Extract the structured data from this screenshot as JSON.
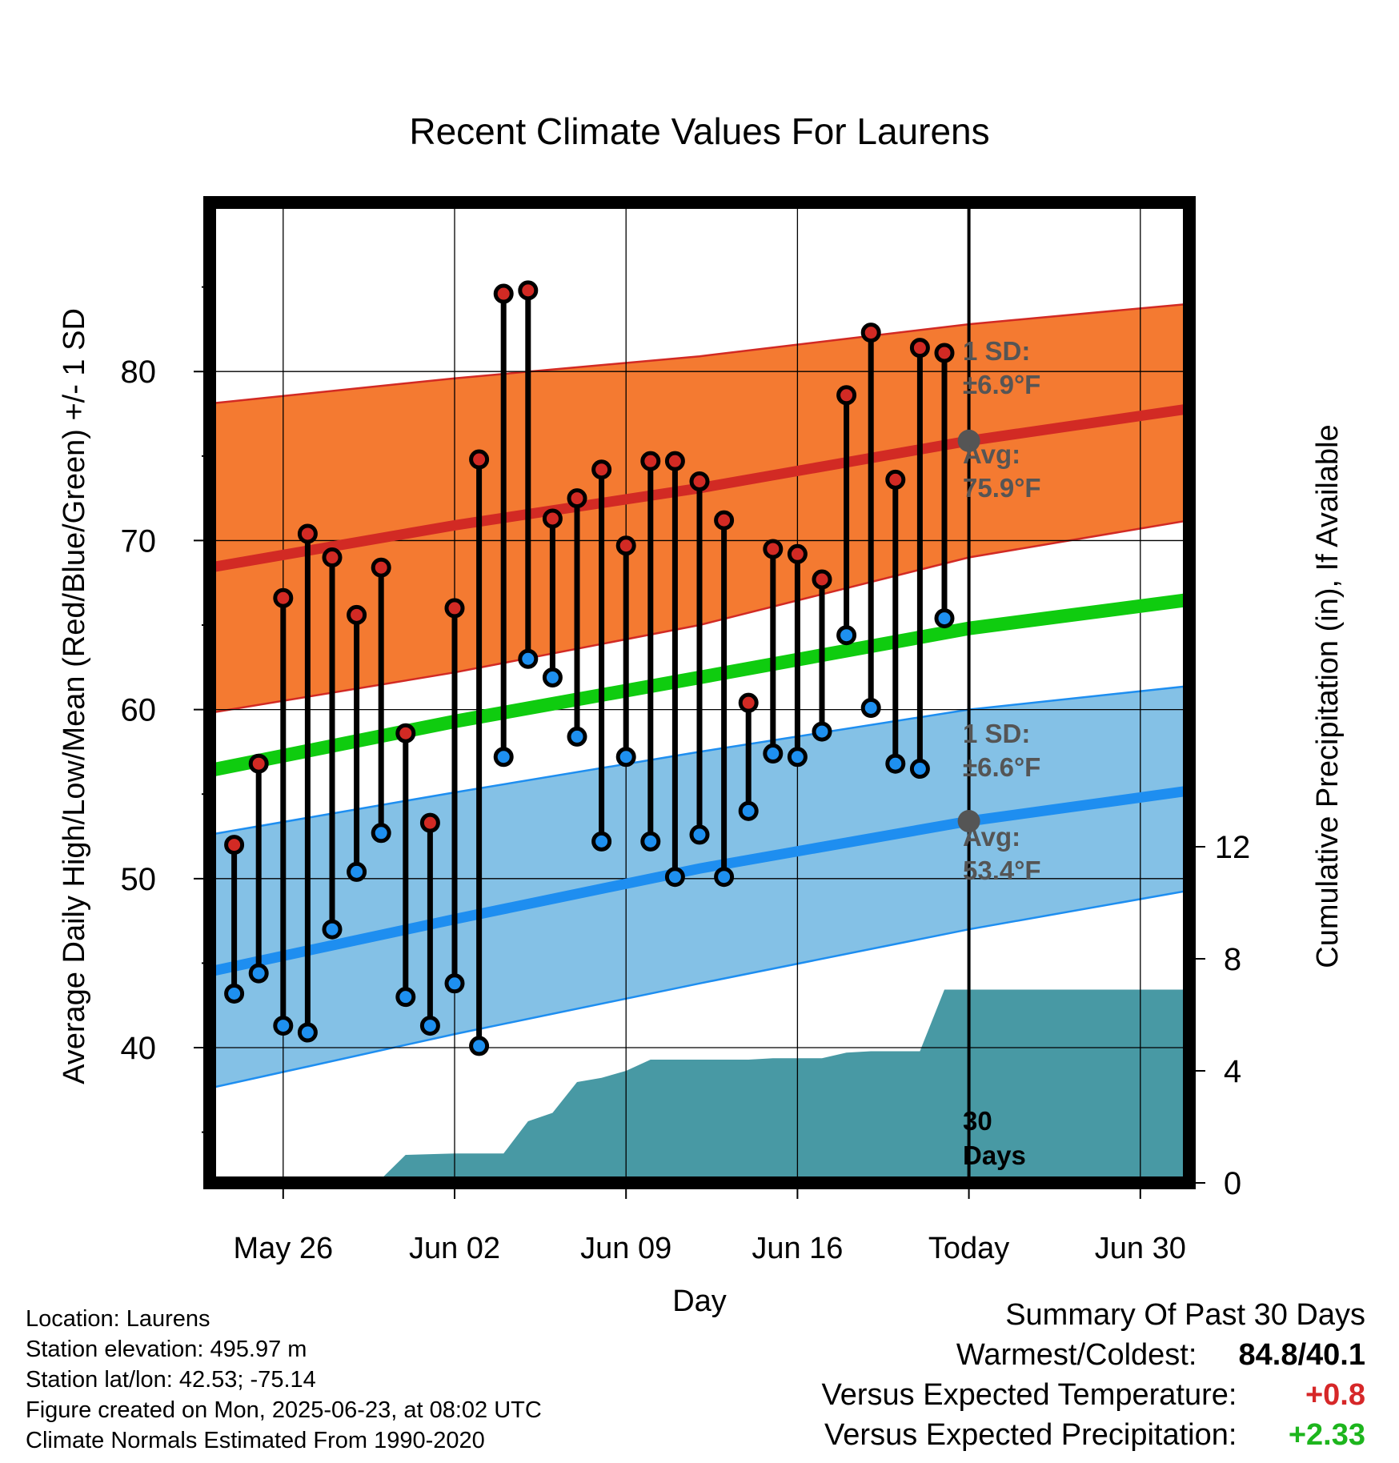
{
  "title": "Recent Climate Values For Laurens",
  "chart_data": {
    "type": "line",
    "title": "Recent Climate Values For Laurens",
    "xlabel": "Day",
    "ylabel_left": "Average Daily High/Low/Mean (Red/Blue/Green) +/- 1 SD",
    "ylabel_right": "Cumulative Precipitation (in), If Available",
    "x_range": [
      "2025-05-23",
      "2025-07-02"
    ],
    "ylim_left": [
      32,
      90
    ],
    "ylim_right": [
      0,
      35
    ],
    "x_ticks": [
      {
        "date": "2025-05-26",
        "label": "May 26"
      },
      {
        "date": "2025-06-02",
        "label": "Jun 02"
      },
      {
        "date": "2025-06-09",
        "label": "Jun 09"
      },
      {
        "date": "2025-06-16",
        "label": "Jun 16"
      },
      {
        "date": "2025-06-23",
        "label": "Today"
      },
      {
        "date": "2025-06-30",
        "label": "Jun 30"
      }
    ],
    "y_ticks_left": [
      40,
      50,
      60,
      70,
      80
    ],
    "y_ticks_right": [
      0,
      4,
      8,
      12
    ],
    "grid": true,
    "today": "2025-06-23",
    "daily_highs": [
      {
        "date": "2025-05-24",
        "value": 52.0
      },
      {
        "date": "2025-05-25",
        "value": 56.8
      },
      {
        "date": "2025-05-26",
        "value": 66.6
      },
      {
        "date": "2025-05-27",
        "value": 70.4
      },
      {
        "date": "2025-05-28",
        "value": 69.0
      },
      {
        "date": "2025-05-29",
        "value": 65.6
      },
      {
        "date": "2025-05-30",
        "value": 68.4
      },
      {
        "date": "2025-05-31",
        "value": 58.6
      },
      {
        "date": "2025-06-01",
        "value": 53.3
      },
      {
        "date": "2025-06-02",
        "value": 66.0
      },
      {
        "date": "2025-06-03",
        "value": 74.8
      },
      {
        "date": "2025-06-04",
        "value": 84.6
      },
      {
        "date": "2025-06-05",
        "value": 84.8
      },
      {
        "date": "2025-06-06",
        "value": 71.3
      },
      {
        "date": "2025-06-07",
        "value": 72.5
      },
      {
        "date": "2025-06-08",
        "value": 74.2
      },
      {
        "date": "2025-06-09",
        "value": 69.7
      },
      {
        "date": "2025-06-10",
        "value": 74.7
      },
      {
        "date": "2025-06-11",
        "value": 74.7
      },
      {
        "date": "2025-06-12",
        "value": 73.5
      },
      {
        "date": "2025-06-13",
        "value": 71.2
      },
      {
        "date": "2025-06-14",
        "value": 60.4
      },
      {
        "date": "2025-06-15",
        "value": 69.5
      },
      {
        "date": "2025-06-16",
        "value": 69.2
      },
      {
        "date": "2025-06-17",
        "value": 67.7
      },
      {
        "date": "2025-06-18",
        "value": 78.6
      },
      {
        "date": "2025-06-19",
        "value": 82.3
      },
      {
        "date": "2025-06-20",
        "value": 73.6
      },
      {
        "date": "2025-06-21",
        "value": 81.4
      },
      {
        "date": "2025-06-22",
        "value": 81.1
      }
    ],
    "daily_lows": [
      {
        "date": "2025-05-24",
        "value": 43.2
      },
      {
        "date": "2025-05-25",
        "value": 44.4
      },
      {
        "date": "2025-05-26",
        "value": 41.3
      },
      {
        "date": "2025-05-27",
        "value": 40.9
      },
      {
        "date": "2025-05-28",
        "value": 47.0
      },
      {
        "date": "2025-05-29",
        "value": 50.4
      },
      {
        "date": "2025-05-30",
        "value": 52.7
      },
      {
        "date": "2025-05-31",
        "value": 43.0
      },
      {
        "date": "2025-06-01",
        "value": 41.3
      },
      {
        "date": "2025-06-02",
        "value": 43.8
      },
      {
        "date": "2025-06-03",
        "value": 40.1
      },
      {
        "date": "2025-06-04",
        "value": 57.2
      },
      {
        "date": "2025-06-05",
        "value": 63.0
      },
      {
        "date": "2025-06-06",
        "value": 61.9
      },
      {
        "date": "2025-06-07",
        "value": 58.4
      },
      {
        "date": "2025-06-08",
        "value": 52.2
      },
      {
        "date": "2025-06-09",
        "value": 57.2
      },
      {
        "date": "2025-06-10",
        "value": 52.2
      },
      {
        "date": "2025-06-11",
        "value": 50.1
      },
      {
        "date": "2025-06-12",
        "value": 52.6
      },
      {
        "date": "2025-06-13",
        "value": 50.1
      },
      {
        "date": "2025-06-14",
        "value": 54.0
      },
      {
        "date": "2025-06-15",
        "value": 57.4
      },
      {
        "date": "2025-06-16",
        "value": 57.2
      },
      {
        "date": "2025-06-17",
        "value": 58.7
      },
      {
        "date": "2025-06-18",
        "value": 64.4
      },
      {
        "date": "2025-06-19",
        "value": 60.1
      },
      {
        "date": "2025-06-20",
        "value": 56.8
      },
      {
        "date": "2025-06-21",
        "value": 56.5
      },
      {
        "date": "2025-06-22",
        "value": 65.4
      }
    ],
    "normal_high": {
      "mean": [
        {
          "date": "2025-05-23",
          "value": 68.4
        },
        {
          "date": "2025-06-02",
          "value": 70.9
        },
        {
          "date": "2025-06-12",
          "value": 73.1
        },
        {
          "date": "2025-06-23",
          "value": 75.9
        },
        {
          "date": "2025-07-02",
          "value": 77.8
        }
      ],
      "upper": [
        {
          "date": "2025-05-23",
          "value": 78.1
        },
        {
          "date": "2025-06-02",
          "value": 79.6
        },
        {
          "date": "2025-06-12",
          "value": 80.9
        },
        {
          "date": "2025-06-23",
          "value": 82.8
        },
        {
          "date": "2025-07-02",
          "value": 84.0
        }
      ],
      "lower": [
        {
          "date": "2025-05-23",
          "value": 59.8
        },
        {
          "date": "2025-06-02",
          "value": 62.2
        },
        {
          "date": "2025-06-12",
          "value": 65.0
        },
        {
          "date": "2025-06-23",
          "value": 69.0
        },
        {
          "date": "2025-07-02",
          "value": 71.2
        }
      ]
    },
    "normal_low": {
      "mean": [
        {
          "date": "2025-05-23",
          "value": 44.5
        },
        {
          "date": "2025-06-02",
          "value": 47.6
        },
        {
          "date": "2025-06-12",
          "value": 50.6
        },
        {
          "date": "2025-06-23",
          "value": 53.4
        },
        {
          "date": "2025-07-02",
          "value": 55.2
        }
      ],
      "upper": [
        {
          "date": "2025-05-23",
          "value": 52.6
        },
        {
          "date": "2025-06-02",
          "value": 55.1
        },
        {
          "date": "2025-06-12",
          "value": 57.5
        },
        {
          "date": "2025-06-23",
          "value": 60.0
        },
        {
          "date": "2025-07-02",
          "value": 61.4
        }
      ],
      "lower": [
        {
          "date": "2025-05-23",
          "value": 37.6
        },
        {
          "date": "2025-06-02",
          "value": 40.8
        },
        {
          "date": "2025-06-12",
          "value": 43.8
        },
        {
          "date": "2025-06-23",
          "value": 47.0
        },
        {
          "date": "2025-07-02",
          "value": 49.3
        }
      ]
    },
    "normal_mean": [
      {
        "date": "2025-05-23",
        "value": 56.4
      },
      {
        "date": "2025-06-02",
        "value": 59.3
      },
      {
        "date": "2025-06-12",
        "value": 61.9
      },
      {
        "date": "2025-06-23",
        "value": 64.8
      },
      {
        "date": "2025-07-02",
        "value": 66.5
      }
    ],
    "cumulative_precip": [
      {
        "date": "2025-05-23",
        "value": 0.0
      },
      {
        "date": "2025-05-24",
        "value": 0.12
      },
      {
        "date": "2025-05-27",
        "value": 0.12
      },
      {
        "date": "2025-05-28",
        "value": 0.14
      },
      {
        "date": "2025-05-30",
        "value": 0.14
      },
      {
        "date": "2025-05-31",
        "value": 1.0
      },
      {
        "date": "2025-06-02",
        "value": 1.05
      },
      {
        "date": "2025-06-04",
        "value": 1.05
      },
      {
        "date": "2025-06-05",
        "value": 2.2
      },
      {
        "date": "2025-06-06",
        "value": 2.5
      },
      {
        "date": "2025-06-07",
        "value": 3.6
      },
      {
        "date": "2025-06-08",
        "value": 3.75
      },
      {
        "date": "2025-06-09",
        "value": 4.0
      },
      {
        "date": "2025-06-10",
        "value": 4.4
      },
      {
        "date": "2025-06-14",
        "value": 4.4
      },
      {
        "date": "2025-06-15",
        "value": 4.45
      },
      {
        "date": "2025-06-17",
        "value": 4.45
      },
      {
        "date": "2025-06-18",
        "value": 4.65
      },
      {
        "date": "2025-06-19",
        "value": 4.7
      },
      {
        "date": "2025-06-21",
        "value": 4.7
      },
      {
        "date": "2025-06-22",
        "value": 6.9
      },
      {
        "date": "2025-07-02",
        "value": 6.9
      }
    ],
    "annotations": {
      "high_sd_label": "1 SD:",
      "high_sd_value": "±6.9°F",
      "high_avg_label": "Avg:",
      "high_avg_value": "75.9°F",
      "low_sd_label": "1 SD:",
      "low_sd_value": "±6.6°F",
      "low_avg_label": "Avg:",
      "low_avg_value": "53.4°F",
      "period_number": "30",
      "period_unit": "Days"
    }
  },
  "colors": {
    "high_band": "#f47a31",
    "high_mean_line": "#d22a24",
    "high_point": "#d22a24",
    "low_band": "#84c1e6",
    "low_mean_line": "#1e8ef0",
    "low_point": "#1e90f0",
    "mean_line": "#0fcc0f",
    "precip_fill": "#4899a4",
    "annotation_text": "#555555",
    "positive_temp": "#d62728",
    "positive_precip": "#1db51d"
  },
  "info": {
    "location": "Location: Laurens",
    "elevation": "Station elevation: 495.97 m",
    "latlon": "Station lat/lon: 42.53; -75.14",
    "created": "Figure created on Mon, 2025-06-23, at 08:02 UTC",
    "normals": "Climate Normals Estimated From 1990-2020"
  },
  "summary": {
    "heading": "Summary Of Past 30 Days",
    "warmest_coldest_label": "Warmest/Coldest:",
    "warmest_coldest_value": "84.8/40.1",
    "temp_label": "Versus Expected Temperature:",
    "temp_value": "+0.8",
    "precip_label": "Versus Expected Precipitation:",
    "precip_value": "+2.33"
  }
}
